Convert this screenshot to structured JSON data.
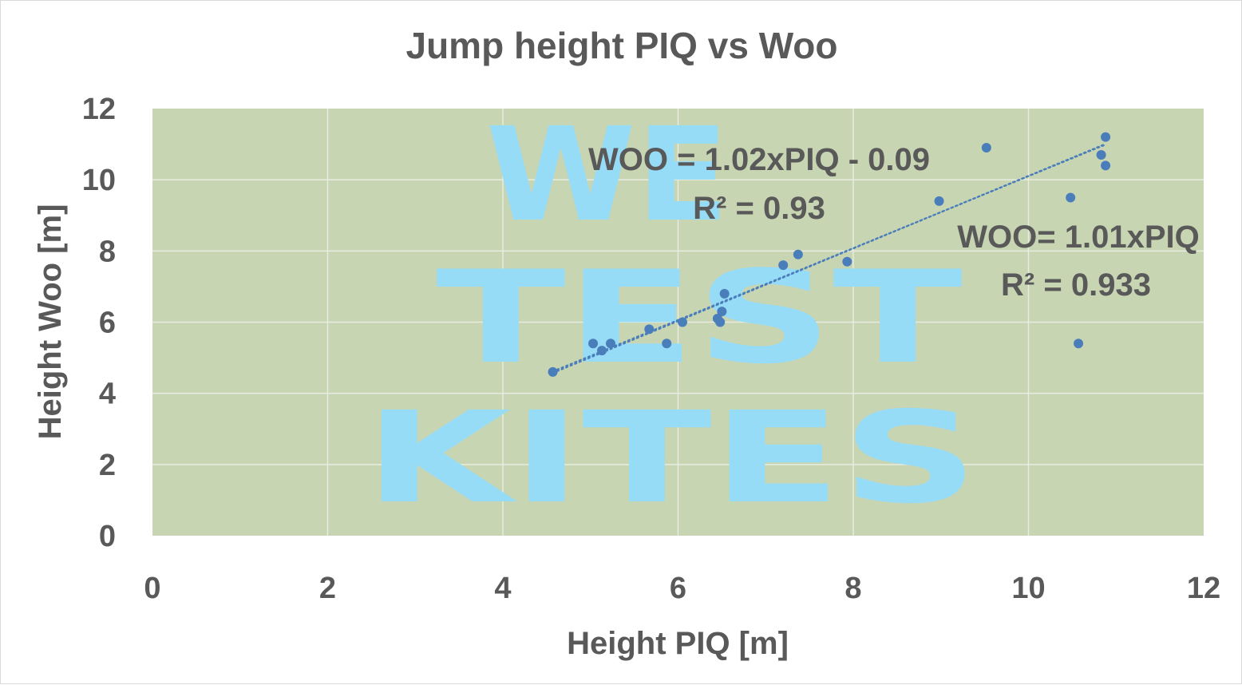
{
  "chart_data": {
    "type": "scatter",
    "title": "Jump height PIQ vs Woo",
    "xlabel": "Height PIQ [m]",
    "ylabel": "Height Woo [m]",
    "xlim": [
      0,
      12
    ],
    "ylim": [
      0,
      12
    ],
    "xticks": [
      "0",
      "2",
      "4",
      "6",
      "8",
      "10",
      "12"
    ],
    "yticks": [
      "0",
      "2",
      "4",
      "6",
      "8",
      "10",
      "12"
    ],
    "grid": true,
    "plot_background": "#c8d5b2",
    "point_color": "#4a7ebb",
    "watermark": [
      "WE",
      "TEST",
      "KITES"
    ],
    "watermark_color": "#97dcf7",
    "series": [
      {
        "points": [
          [
            4.57,
            4.6
          ],
          [
            5.03,
            5.4
          ],
          [
            5.13,
            5.2
          ],
          [
            5.23,
            5.4
          ],
          [
            5.67,
            5.8
          ],
          [
            5.87,
            5.4
          ],
          [
            6.05,
            6.0
          ],
          [
            6.45,
            6.1
          ],
          [
            6.48,
            6.0
          ],
          [
            6.5,
            6.3
          ],
          [
            6.53,
            6.8
          ],
          [
            7.2,
            7.6
          ],
          [
            7.37,
            7.9
          ],
          [
            7.93,
            7.7
          ],
          [
            8.98,
            9.4
          ],
          [
            9.52,
            10.9
          ],
          [
            10.48,
            9.5
          ],
          [
            10.57,
            5.4
          ],
          [
            10.83,
            10.7
          ],
          [
            10.88,
            11.2
          ],
          [
            10.88,
            10.4
          ]
        ]
      }
    ],
    "trendlines": [
      {
        "slope": 1.02,
        "intercept": -0.09,
        "x_range": [
          4.57,
          10.88
        ],
        "label": "WOO = 1.02xPIQ - 0.09",
        "r2_label": "R² = 0.93"
      },
      {
        "slope": 1.01,
        "intercept": 0.0,
        "x_range": [
          4.57,
          10.88
        ],
        "label": "WOO= 1.01xPIQ",
        "r2_label": "R² = 0.933"
      }
    ]
  }
}
